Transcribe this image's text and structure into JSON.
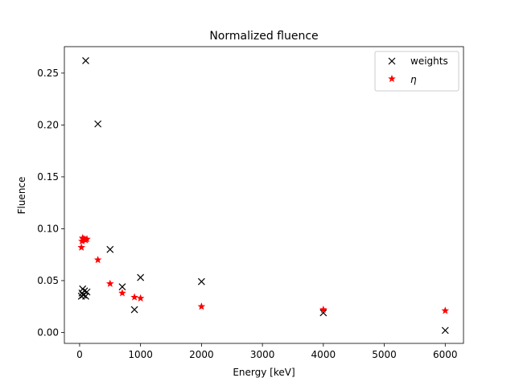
{
  "chart_data": {
    "type": "scatter",
    "title": "Normalized fluence",
    "xlabel": "Energy [keV]",
    "ylabel": "Fluence",
    "xlim": [
      -250,
      6300
    ],
    "ylim": [
      -0.0105,
      0.2755
    ],
    "xticks": [
      0,
      1000,
      2000,
      3000,
      4000,
      5000,
      6000
    ],
    "yticks": [
      0.0,
      0.05,
      0.1,
      0.15,
      0.2,
      0.25
    ],
    "xtick_labels": [
      "0",
      "1000",
      "2000",
      "3000",
      "4000",
      "5000",
      "6000"
    ],
    "ytick_labels": [
      "0.00",
      "0.05",
      "0.10",
      "0.15",
      "0.20",
      "0.25"
    ],
    "grid": false,
    "legend": "top-right",
    "series": [
      {
        "name": "weights",
        "marker": "x",
        "color": "#000000",
        "points": [
          [
            30,
            0.035
          ],
          [
            40,
            0.038
          ],
          [
            50,
            0.042
          ],
          [
            60,
            0.036
          ],
          [
            80,
            0.04
          ],
          [
            100,
            0.262
          ],
          [
            100,
            0.035
          ],
          [
            120,
            0.039
          ],
          [
            300,
            0.201
          ],
          [
            500,
            0.08
          ],
          [
            700,
            0.044
          ],
          [
            900,
            0.022
          ],
          [
            1000,
            0.053
          ],
          [
            2000,
            0.049
          ],
          [
            4000,
            0.019
          ],
          [
            6000,
            0.002
          ]
        ]
      },
      {
        "name": "η",
        "marker": "star",
        "color": "#ff0000",
        "points": [
          [
            30,
            0.082
          ],
          [
            40,
            0.088
          ],
          [
            50,
            0.091
          ],
          [
            60,
            0.09
          ],
          [
            80,
            0.09
          ],
          [
            100,
            0.089
          ],
          [
            120,
            0.09
          ],
          [
            300,
            0.07
          ],
          [
            500,
            0.047
          ],
          [
            700,
            0.038
          ],
          [
            900,
            0.034
          ],
          [
            1000,
            0.033
          ],
          [
            2000,
            0.025
          ],
          [
            4000,
            0.022
          ],
          [
            6000,
            0.021
          ]
        ]
      }
    ]
  }
}
